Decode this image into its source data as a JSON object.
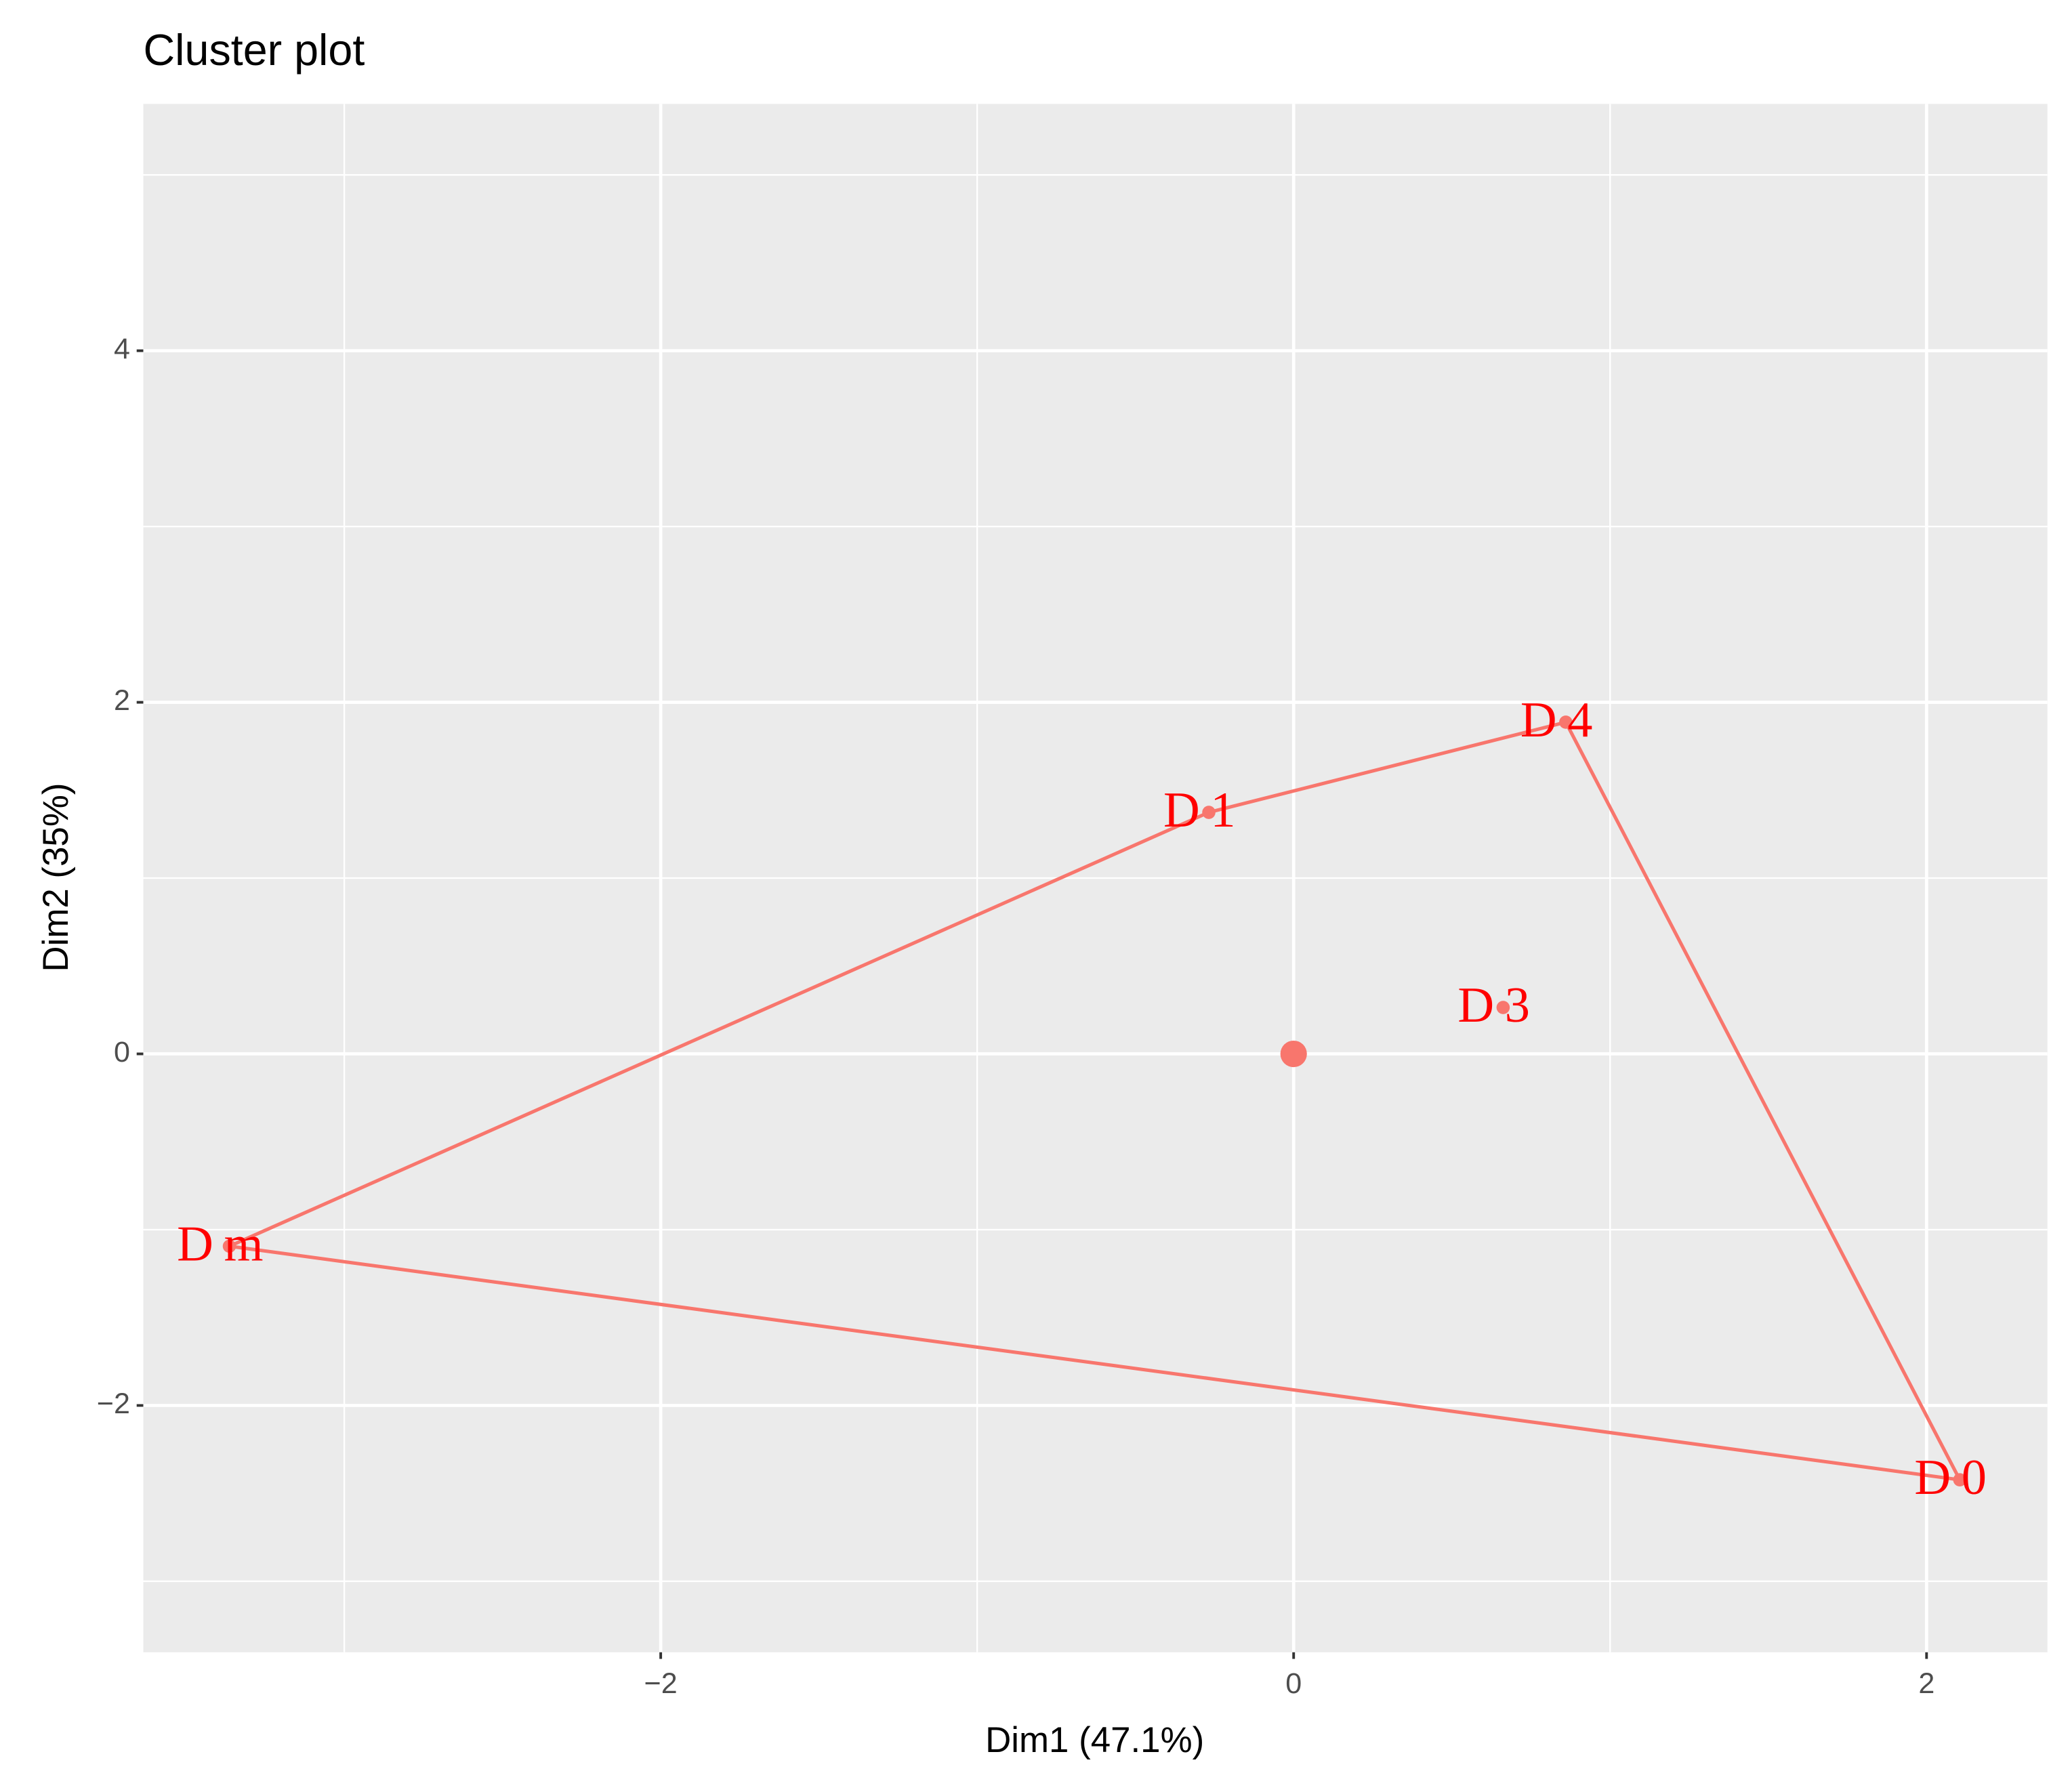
{
  "chart_data": {
    "type": "scatter",
    "title": "Cluster plot",
    "xlabel": "Dim1 (47.1%)",
    "ylabel": "Dim2 (35%)",
    "labels": [
      "D1",
      "D4",
      "D3",
      "Dm",
      "D0"
    ],
    "x": [
      -0.268,
      0.86,
      0.662,
      -3.363,
      2.105
    ],
    "values": [
      1.374,
      1.887,
      0.264,
      -1.094,
      -2.423
    ],
    "color": "#F8766D",
    "label_color": "#FF0000",
    "center": {
      "x": 0,
      "y": 0
    },
    "hull": true,
    "xlim": [
      -3.635,
      2.382
    ],
    "ylim": [
      -3.404,
      5.404
    ],
    "xticks": [
      {
        "value": -2,
        "label": "−2"
      },
      0,
      2
    ],
    "yticks": [
      {
        "value": -2,
        "label": "−2"
      },
      0,
      2,
      4
    ],
    "grid": true
  }
}
